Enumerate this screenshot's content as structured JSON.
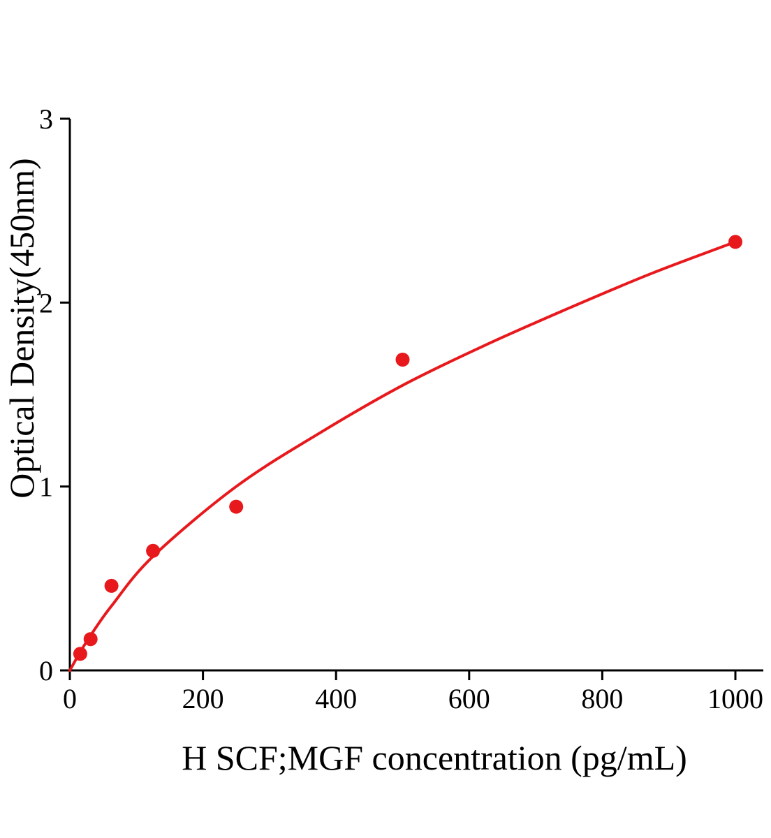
{
  "page": {
    "background": "#ffffff"
  },
  "chart_data": {
    "type": "scatter",
    "title": "",
    "xlabel": "H SCF;MGF concentration (pg/mL)",
    "ylabel": "Optical Density(450nm)",
    "xlim": [
      0,
      1042
    ],
    "ylim": [
      0,
      3
    ],
    "x_ticks": [
      0,
      200,
      400,
      600,
      800,
      1000
    ],
    "y_ticks": [
      0,
      1,
      2,
      3
    ],
    "grid": false,
    "legend": "none",
    "colors": {
      "curve": "#e8191d",
      "points": "#e8191d",
      "axis": "#000000",
      "text": "#000000"
    },
    "series": [
      {
        "name": "standard-points",
        "type": "scatter",
        "points": [
          {
            "x": 15.6,
            "y": 0.09
          },
          {
            "x": 31.2,
            "y": 0.17
          },
          {
            "x": 62.5,
            "y": 0.46
          },
          {
            "x": 125,
            "y": 0.65
          },
          {
            "x": 250,
            "y": 0.89
          },
          {
            "x": 500,
            "y": 1.69
          },
          {
            "x": 1000,
            "y": 2.33
          }
        ]
      },
      {
        "name": "fit-curve",
        "type": "line",
        "points": [
          {
            "x": 0,
            "y": 0
          },
          {
            "x": 15.6,
            "y": 0.1
          },
          {
            "x": 31.2,
            "y": 0.19
          },
          {
            "x": 62.5,
            "y": 0.35
          },
          {
            "x": 125,
            "y": 0.62
          },
          {
            "x": 250,
            "y": 1.0
          },
          {
            "x": 375,
            "y": 1.29
          },
          {
            "x": 500,
            "y": 1.55
          },
          {
            "x": 625,
            "y": 1.77
          },
          {
            "x": 750,
            "y": 1.97
          },
          {
            "x": 875,
            "y": 2.16
          },
          {
            "x": 1000,
            "y": 2.33
          }
        ]
      }
    ]
  }
}
